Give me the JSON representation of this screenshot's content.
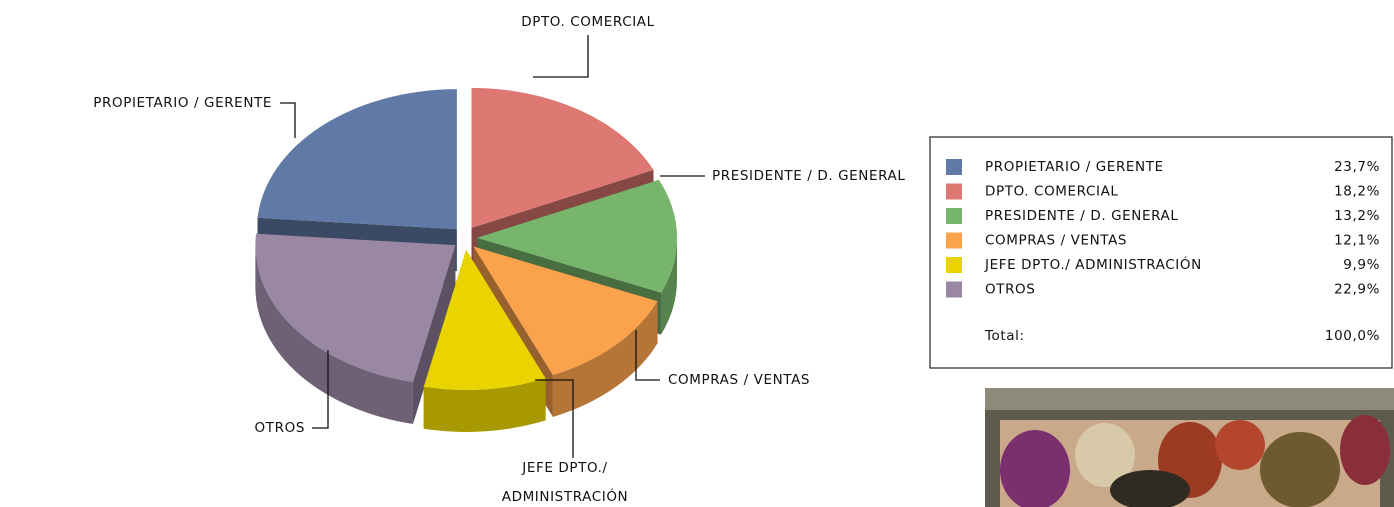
{
  "chart_data": {
    "type": "pie",
    "categories": [
      "PROPIETARIO / GERENTE",
      "DPTO. COMERCIAL",
      "PRESIDENTE / D. GENERAL",
      "COMPRAS / VENTAS",
      "JEFE DPTO./ ADMINISTRACIÓN",
      "OTROS"
    ],
    "values": [
      23.7,
      18.2,
      13.2,
      12.1,
      9.9,
      22.9
    ],
    "value_labels": [
      "23,7%",
      "18,2%",
      "13,2%",
      "12,1%",
      "9,9%",
      "22,9%"
    ],
    "colors": [
      "#6079a6",
      "#de7873",
      "#78b56c",
      "#fba24c",
      "#e9d400",
      "#9a87a3"
    ],
    "total": {
      "label": "Total:",
      "value": 100,
      "value_label": "100,0%"
    }
  }
}
